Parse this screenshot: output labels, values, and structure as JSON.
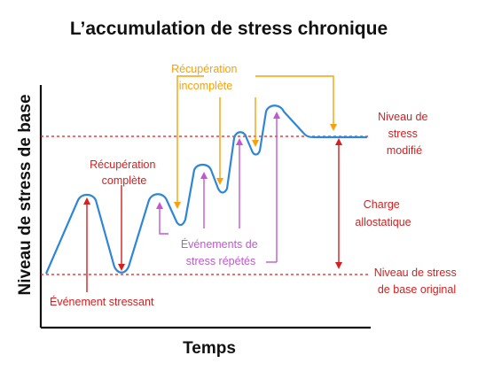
{
  "title": "L’accumulation de stress chronique",
  "y_axis_label": "Niveau de stress de base",
  "x_axis_label": "Temps",
  "labels": {
    "recovery_complete": [
      "Récupération",
      "complète"
    ],
    "recovery_incomplete": [
      "Récupération",
      "incomplète"
    ],
    "repeated_events": [
      "Événements de",
      "stress répétés"
    ],
    "stressful_event": "Événement stressant",
    "modified_level": [
      "Niveau de",
      "stress",
      "modifié"
    ],
    "allostatic_load": [
      "Charge",
      "allostatique"
    ],
    "original_level": [
      "Niveau de stress",
      "de base original"
    ]
  },
  "colors": {
    "curve": "#2f86d8",
    "red": "#d42020",
    "orange": "#f5a20c",
    "purple": "#c257d1",
    "axis": "#111111"
  }
}
